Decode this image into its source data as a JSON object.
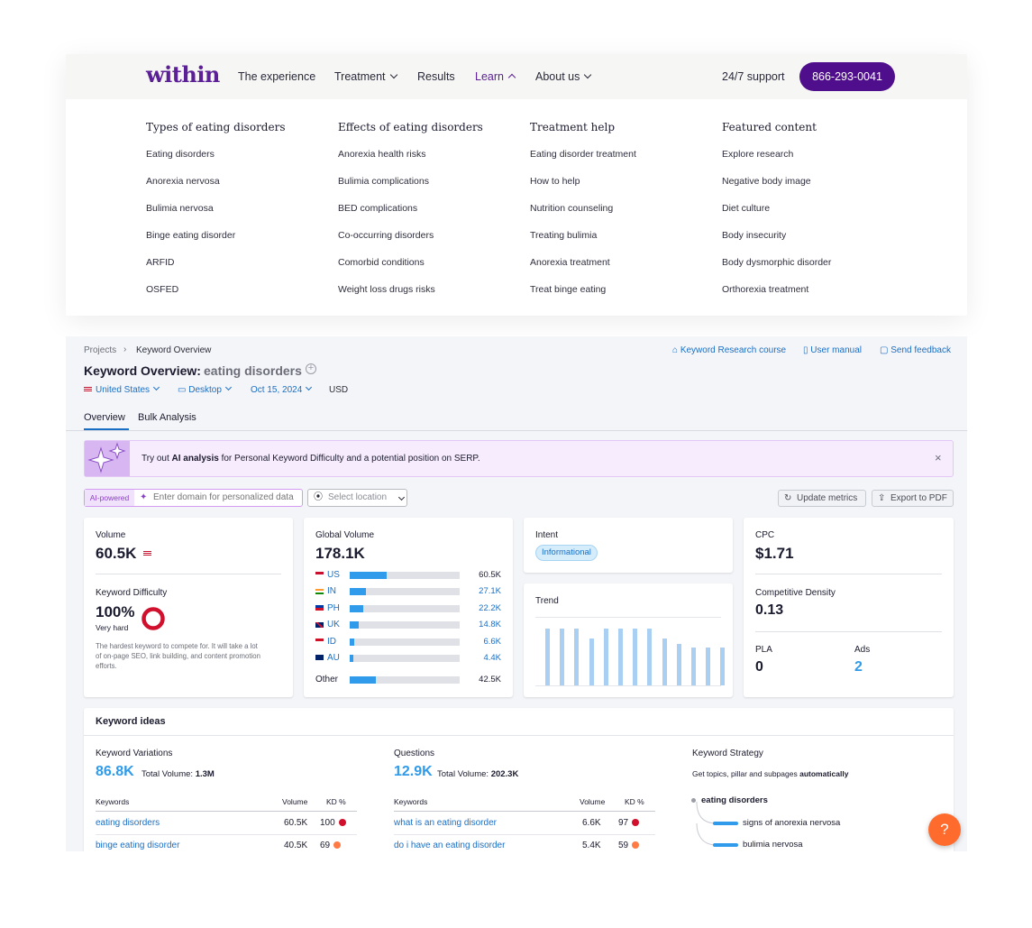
{
  "site": {
    "logo": "within",
    "nav": [
      "The experience",
      "Treatment",
      "Results",
      "Learn",
      "About us"
    ],
    "support": "24/7 support",
    "phone": "866-293-0041",
    "menu": [
      {
        "heading": "Types of eating disorders",
        "links": [
          "Eating disorders",
          "Anorexia nervosa",
          "Bulimia nervosa",
          "Binge eating disorder",
          "ARFID",
          "OSFED"
        ]
      },
      {
        "heading": "Effects of eating disorders",
        "links": [
          "Anorexia health risks",
          "Bulimia complications",
          "BED complications",
          "Co-occurring disorders",
          "Comorbid conditions",
          "Weight loss drugs risks"
        ]
      },
      {
        "heading": "Treatment help",
        "links": [
          "Eating disorder treatment",
          "How to help",
          "Nutrition counseling",
          "Treating bulimia",
          "Anorexia treatment",
          "Treat binge eating"
        ]
      },
      {
        "heading": "Featured content",
        "links": [
          "Explore research",
          "Negative body image",
          "Diet culture",
          "Body insecurity",
          "Body dysmorphic disorder",
          "Orthorexia treatment"
        ]
      }
    ]
  },
  "tool": {
    "breadcrumb": {
      "root": "Projects",
      "current": "Keyword Overview"
    },
    "top_links": {
      "course": "Keyword Research course",
      "manual": "User manual",
      "feedback": "Send feedback"
    },
    "title": "Keyword Overview:",
    "keyword": "eating disorders",
    "filters": {
      "country": "United States",
      "device": "Desktop",
      "date": "Oct 15, 2024",
      "currency": "USD"
    },
    "tabs": [
      "Overview",
      "Bulk Analysis"
    ],
    "banner": {
      "pre": "Try out",
      "highlight": "AI analysis",
      "post": "for Personal Keyword Difficulty and a potential position on SERP."
    },
    "ai_badge": "AI-powered",
    "domain_placeholder": "Enter domain for personalized data",
    "location_placeholder": "Select location",
    "update_btn": "Update metrics",
    "export_btn": "Export to PDF",
    "volume": {
      "label": "Volume",
      "value": "60.5K"
    },
    "kd": {
      "label": "Keyword Difficulty",
      "value": "100%",
      "level": "Very hard",
      "percent": 100,
      "desc": [
        "The hardest keyword to compete for. It will take a lot",
        "of on-page SEO, link building, and content promotion",
        "efforts."
      ]
    },
    "global": {
      "label": "Global Volume",
      "value": "178.1K",
      "countries": [
        {
          "code": "US",
          "value": "60.5K",
          "share": 0.34,
          "flag": "us"
        },
        {
          "code": "IN",
          "value": "27.1K",
          "share": 0.15,
          "flag": "in"
        },
        {
          "code": "PH",
          "value": "22.2K",
          "share": 0.12,
          "flag": "ph"
        },
        {
          "code": "UK",
          "value": "14.8K",
          "share": 0.08,
          "flag": "uk"
        },
        {
          "code": "ID",
          "value": "6.6K",
          "share": 0.04,
          "flag": "id"
        },
        {
          "code": "AU",
          "value": "4.4K",
          "share": 0.03,
          "flag": "au"
        }
      ],
      "other": {
        "label": "Other",
        "value": "42.5K",
        "share": 0.24
      }
    },
    "intent": {
      "label": "Intent",
      "value": "Informational"
    },
    "trend": {
      "label": "Trend",
      "values": [
        0.83,
        0.83,
        0.83,
        0.69,
        0.83,
        0.83,
        0.83,
        0.83,
        0.69,
        0.61,
        0.55,
        0.55,
        0.55
      ]
    },
    "cpc": {
      "label": "CPC",
      "value": "$1.71"
    },
    "density": {
      "label": "Competitive Density",
      "value": "0.13"
    },
    "pla": {
      "label": "PLA",
      "value": "0"
    },
    "ads": {
      "label": "Ads",
      "value": "2"
    },
    "ideas": {
      "title": "Keyword ideas",
      "variations": {
        "label": "Keyword Variations",
        "count": "86.8K",
        "total_label": "Total Volume:",
        "total": "1.3M",
        "headers": [
          "Keywords",
          "Volume",
          "KD %"
        ],
        "rows": [
          {
            "kw": "eating disorders",
            "vol": "60.5K",
            "kd": "100",
            "color": "#d1102d"
          },
          {
            "kw": "binge eating disorder",
            "vol": "40.5K",
            "kd": "69",
            "color": "#ff7a45"
          }
        ]
      },
      "questions": {
        "label": "Questions",
        "count": "12.9K",
        "total_label": "Total Volume:",
        "total": "202.3K",
        "headers": [
          "Keywords",
          "Volume",
          "KD %"
        ],
        "rows": [
          {
            "kw": "what is an eating disorder",
            "vol": "6.6K",
            "kd": "97",
            "color": "#d1102d"
          },
          {
            "kw": "do i have an eating disorder",
            "vol": "5.4K",
            "kd": "59",
            "color": "#ff7a45"
          }
        ]
      },
      "strategy": {
        "label": "Keyword Strategy",
        "desc_pre": "Get topics, pillar and subpages",
        "desc_bold": "automatically",
        "root": "eating disorders",
        "children": [
          "signs of anorexia nervosa",
          "bulimia nervosa"
        ]
      }
    }
  },
  "help_label": "?"
}
